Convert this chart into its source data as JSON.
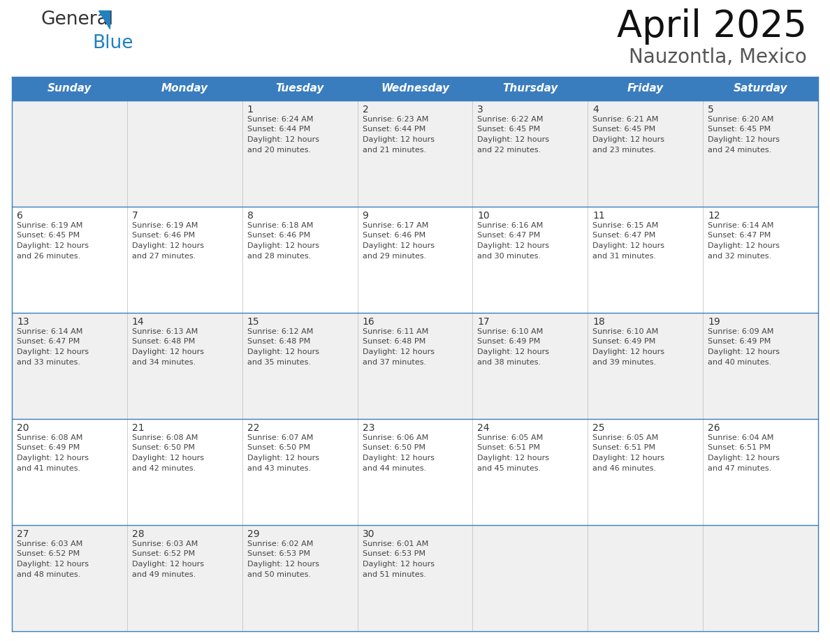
{
  "title": "April 2025",
  "subtitle": "Nauzontla, Mexico",
  "header_bg_color": "#3a7dbf",
  "header_text_color": "#ffffff",
  "day_names": [
    "Sunday",
    "Monday",
    "Tuesday",
    "Wednesday",
    "Thursday",
    "Friday",
    "Saturday"
  ],
  "title_font_size": 38,
  "subtitle_font_size": 20,
  "cell_text_color": "#444444",
  "cell_number_color": "#333333",
  "row_bg_colors": [
    "#f0f0f0",
    "#ffffff",
    "#f0f0f0",
    "#ffffff",
    "#f0f0f0"
  ],
  "border_color": "#3a7dbf",
  "inner_border_color": "#3a7dbf",
  "logo_color1": "#333333",
  "logo_color2": "#2080c0",
  "logo_triangle_color": "#2080c0",
  "weeks": [
    {
      "days": [
        {
          "date": "",
          "sunrise": "",
          "sunset": "",
          "daylight_hours": 0,
          "daylight_minutes": 0
        },
        {
          "date": "",
          "sunrise": "",
          "sunset": "",
          "daylight_hours": 0,
          "daylight_minutes": 0
        },
        {
          "date": "1",
          "sunrise": "6:24 AM",
          "sunset": "6:44 PM",
          "daylight_hours": 12,
          "daylight_minutes": 20
        },
        {
          "date": "2",
          "sunrise": "6:23 AM",
          "sunset": "6:44 PM",
          "daylight_hours": 12,
          "daylight_minutes": 21
        },
        {
          "date": "3",
          "sunrise": "6:22 AM",
          "sunset": "6:45 PM",
          "daylight_hours": 12,
          "daylight_minutes": 22
        },
        {
          "date": "4",
          "sunrise": "6:21 AM",
          "sunset": "6:45 PM",
          "daylight_hours": 12,
          "daylight_minutes": 23
        },
        {
          "date": "5",
          "sunrise": "6:20 AM",
          "sunset": "6:45 PM",
          "daylight_hours": 12,
          "daylight_minutes": 24
        }
      ]
    },
    {
      "days": [
        {
          "date": "6",
          "sunrise": "6:19 AM",
          "sunset": "6:45 PM",
          "daylight_hours": 12,
          "daylight_minutes": 26
        },
        {
          "date": "7",
          "sunrise": "6:19 AM",
          "sunset": "6:46 PM",
          "daylight_hours": 12,
          "daylight_minutes": 27
        },
        {
          "date": "8",
          "sunrise": "6:18 AM",
          "sunset": "6:46 PM",
          "daylight_hours": 12,
          "daylight_minutes": 28
        },
        {
          "date": "9",
          "sunrise": "6:17 AM",
          "sunset": "6:46 PM",
          "daylight_hours": 12,
          "daylight_minutes": 29
        },
        {
          "date": "10",
          "sunrise": "6:16 AM",
          "sunset": "6:47 PM",
          "daylight_hours": 12,
          "daylight_minutes": 30
        },
        {
          "date": "11",
          "sunrise": "6:15 AM",
          "sunset": "6:47 PM",
          "daylight_hours": 12,
          "daylight_minutes": 31
        },
        {
          "date": "12",
          "sunrise": "6:14 AM",
          "sunset": "6:47 PM",
          "daylight_hours": 12,
          "daylight_minutes": 32
        }
      ]
    },
    {
      "days": [
        {
          "date": "13",
          "sunrise": "6:14 AM",
          "sunset": "6:47 PM",
          "daylight_hours": 12,
          "daylight_minutes": 33
        },
        {
          "date": "14",
          "sunrise": "6:13 AM",
          "sunset": "6:48 PM",
          "daylight_hours": 12,
          "daylight_minutes": 34
        },
        {
          "date": "15",
          "sunrise": "6:12 AM",
          "sunset": "6:48 PM",
          "daylight_hours": 12,
          "daylight_minutes": 35
        },
        {
          "date": "16",
          "sunrise": "6:11 AM",
          "sunset": "6:48 PM",
          "daylight_hours": 12,
          "daylight_minutes": 37
        },
        {
          "date": "17",
          "sunrise": "6:10 AM",
          "sunset": "6:49 PM",
          "daylight_hours": 12,
          "daylight_minutes": 38
        },
        {
          "date": "18",
          "sunrise": "6:10 AM",
          "sunset": "6:49 PM",
          "daylight_hours": 12,
          "daylight_minutes": 39
        },
        {
          "date": "19",
          "sunrise": "6:09 AM",
          "sunset": "6:49 PM",
          "daylight_hours": 12,
          "daylight_minutes": 40
        }
      ]
    },
    {
      "days": [
        {
          "date": "20",
          "sunrise": "6:08 AM",
          "sunset": "6:49 PM",
          "daylight_hours": 12,
          "daylight_minutes": 41
        },
        {
          "date": "21",
          "sunrise": "6:08 AM",
          "sunset": "6:50 PM",
          "daylight_hours": 12,
          "daylight_minutes": 42
        },
        {
          "date": "22",
          "sunrise": "6:07 AM",
          "sunset": "6:50 PM",
          "daylight_hours": 12,
          "daylight_minutes": 43
        },
        {
          "date": "23",
          "sunrise": "6:06 AM",
          "sunset": "6:50 PM",
          "daylight_hours": 12,
          "daylight_minutes": 44
        },
        {
          "date": "24",
          "sunrise": "6:05 AM",
          "sunset": "6:51 PM",
          "daylight_hours": 12,
          "daylight_minutes": 45
        },
        {
          "date": "25",
          "sunrise": "6:05 AM",
          "sunset": "6:51 PM",
          "daylight_hours": 12,
          "daylight_minutes": 46
        },
        {
          "date": "26",
          "sunrise": "6:04 AM",
          "sunset": "6:51 PM",
          "daylight_hours": 12,
          "daylight_minutes": 47
        }
      ]
    },
    {
      "days": [
        {
          "date": "27",
          "sunrise": "6:03 AM",
          "sunset": "6:52 PM",
          "daylight_hours": 12,
          "daylight_minutes": 48
        },
        {
          "date": "28",
          "sunrise": "6:03 AM",
          "sunset": "6:52 PM",
          "daylight_hours": 12,
          "daylight_minutes": 49
        },
        {
          "date": "29",
          "sunrise": "6:02 AM",
          "sunset": "6:53 PM",
          "daylight_hours": 12,
          "daylight_minutes": 50
        },
        {
          "date": "30",
          "sunrise": "6:01 AM",
          "sunset": "6:53 PM",
          "daylight_hours": 12,
          "daylight_minutes": 51
        },
        {
          "date": "",
          "sunrise": "",
          "sunset": "",
          "daylight_hours": 0,
          "daylight_minutes": 0
        },
        {
          "date": "",
          "sunrise": "",
          "sunset": "",
          "daylight_hours": 0,
          "daylight_minutes": 0
        },
        {
          "date": "",
          "sunrise": "",
          "sunset": "",
          "daylight_hours": 0,
          "daylight_minutes": 0
        }
      ]
    }
  ]
}
